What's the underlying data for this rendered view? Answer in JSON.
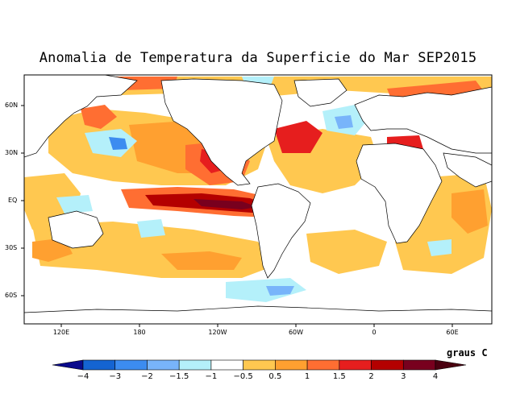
{
  "title": "Anomalia de Temperatura da Superficie do Mar SEP2015",
  "lat_labels": [
    "60N",
    "30N",
    "EQ",
    "30S",
    "60S"
  ],
  "lon_labels": [
    "120E",
    "180",
    "120W",
    "60W",
    "0",
    "60E"
  ],
  "legend": {
    "units": "graus C",
    "ticks": [
      "−4",
      "−3",
      "−2",
      "−1.5",
      "−1",
      "−0.5",
      "0.5",
      "1",
      "1.5",
      "2",
      "3",
      "4"
    ],
    "colors": [
      "#0a0a8c",
      "#1464d2",
      "#3c8cf0",
      "#78b4fa",
      "#b4f0fa",
      "#ffffff",
      "#ffc850",
      "#ffa030",
      "#ff6e32",
      "#e61e1e",
      "#b40000",
      "#78001e",
      "#4a0010"
    ]
  },
  "colors": {
    "land": "#ffffff",
    "ocean_neutral": "#ffffff",
    "coast": "#000000"
  }
}
